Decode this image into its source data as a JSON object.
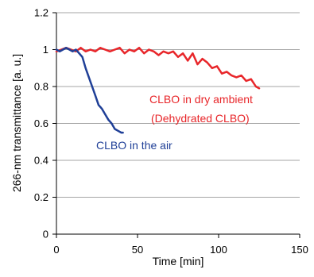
{
  "chart_data": {
    "type": "line",
    "title": "",
    "xlabel": "Time [min]",
    "ylabel": "266-nm transmittance [a. u.]",
    "xlim": [
      0,
      150
    ],
    "ylim": [
      0,
      1.2
    ],
    "xticks": [
      "0",
      "50",
      "100",
      "150"
    ],
    "yticks": [
      "0",
      "0.2",
      "0.4",
      "0.6",
      "0.8",
      "1",
      "1.2"
    ],
    "grid": "horizontal",
    "series": [
      {
        "name": "CLBO in dry ambient (Dehydrated CLBO)",
        "color": "#e8262a",
        "x": [
          0,
          3,
          6,
          9,
          12,
          15,
          18,
          21,
          24,
          27,
          30,
          33,
          36,
          39,
          42,
          45,
          48,
          51,
          54,
          57,
          60,
          63,
          66,
          69,
          72,
          75,
          78,
          81,
          84,
          87,
          90,
          93,
          96,
          99,
          102,
          105,
          108,
          111,
          114,
          117,
          120,
          123,
          125
        ],
        "y": [
          0.99,
          1.0,
          1.01,
          1.0,
          0.99,
          1.01,
          0.99,
          1.0,
          0.99,
          1.01,
          1.0,
          0.99,
          1.0,
          1.01,
          0.98,
          1.0,
          0.99,
          1.01,
          0.98,
          1.0,
          0.99,
          0.97,
          0.99,
          0.98,
          0.99,
          0.96,
          0.98,
          0.94,
          0.98,
          0.92,
          0.95,
          0.93,
          0.9,
          0.91,
          0.87,
          0.88,
          0.86,
          0.85,
          0.86,
          0.83,
          0.84,
          0.8,
          0.79
        ]
      },
      {
        "name": "CLBO in the air",
        "color": "#1f3f97",
        "x": [
          0,
          2,
          4,
          6,
          8,
          10,
          12,
          14,
          16,
          18,
          20,
          22,
          24,
          26,
          28,
          30,
          32,
          34,
          36,
          38,
          40,
          41
        ],
        "y": [
          1.0,
          0.99,
          1.0,
          1.01,
          1.0,
          0.99,
          1.0,
          0.98,
          0.96,
          0.9,
          0.85,
          0.8,
          0.75,
          0.7,
          0.68,
          0.65,
          0.62,
          0.6,
          0.57,
          0.56,
          0.55,
          0.55
        ]
      }
    ],
    "annotations": [
      {
        "text": "CLBO in dry ambient",
        "color": "#e8262a"
      },
      {
        "text": "(Dehydrated CLBO)",
        "color": "#e8262a"
      },
      {
        "text": "CLBO in the air",
        "color": "#1f3f97"
      }
    ]
  }
}
